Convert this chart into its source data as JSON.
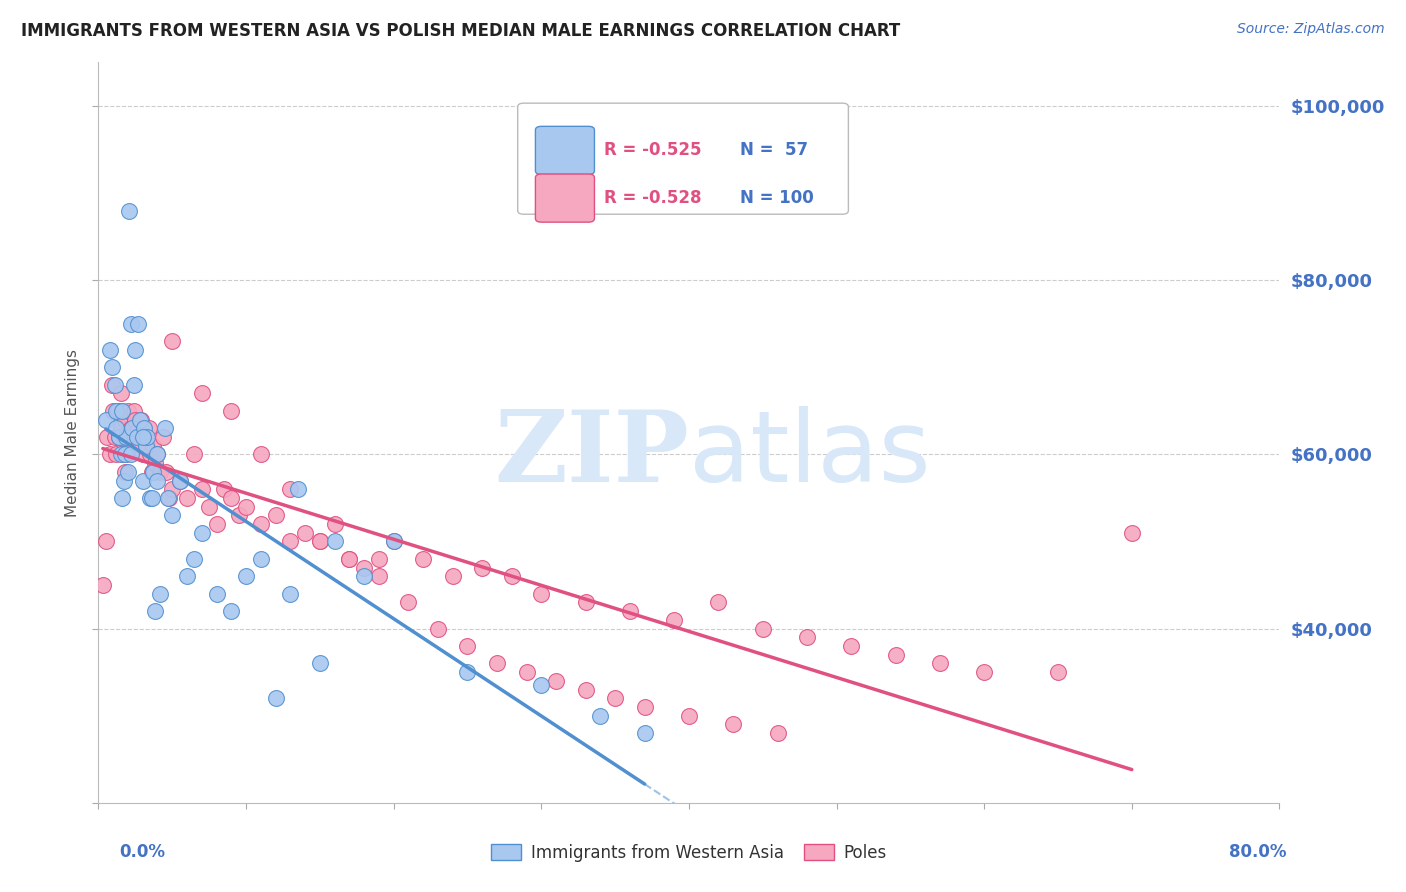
{
  "title": "IMMIGRANTS FROM WESTERN ASIA VS POLISH MEDIAN MALE EARNINGS CORRELATION CHART",
  "source": "Source: ZipAtlas.com",
  "ylabel": "Median Male Earnings",
  "y_min": 20000,
  "y_max": 105000,
  "x_min": 0.0,
  "x_max": 0.8,
  "legend_r1": "R = -0.525",
  "legend_n1": "N =  57",
  "legend_r2": "R = -0.528",
  "legend_n2": "N = 100",
  "color_blue": "#A8C8F0",
  "color_pink": "#F5A8C0",
  "color_blue_line": "#5090D0",
  "color_pink_line": "#E05080",
  "color_axis_label": "#4472C4",
  "color_title": "#222222",
  "color_grid": "#CCCCCC",
  "color_watermark": "#D8E8F8",
  "blue_scatter_x": [
    0.005,
    0.008,
    0.009,
    0.011,
    0.012,
    0.014,
    0.015,
    0.016,
    0.017,
    0.018,
    0.019,
    0.02,
    0.021,
    0.022,
    0.023,
    0.024,
    0.025,
    0.026,
    0.027,
    0.028,
    0.03,
    0.031,
    0.032,
    0.033,
    0.035,
    0.036,
    0.037,
    0.038,
    0.04,
    0.042,
    0.045,
    0.047,
    0.05,
    0.055,
    0.06,
    0.065,
    0.07,
    0.08,
    0.09,
    0.1,
    0.11,
    0.12,
    0.13,
    0.135,
    0.15,
    0.16,
    0.18,
    0.2,
    0.25,
    0.3,
    0.34,
    0.37,
    0.012,
    0.016,
    0.022,
    0.03,
    0.04
  ],
  "blue_scatter_y": [
    64000,
    72000,
    70000,
    68000,
    65000,
    62000,
    60000,
    55000,
    57000,
    60000,
    62000,
    58000,
    88000,
    75000,
    63000,
    68000,
    72000,
    62000,
    75000,
    64000,
    57000,
    63000,
    61000,
    62000,
    55000,
    55000,
    58000,
    42000,
    60000,
    44000,
    63000,
    55000,
    53000,
    57000,
    46000,
    48000,
    51000,
    44000,
    42000,
    46000,
    48000,
    32000,
    44000,
    56000,
    36000,
    50000,
    46000,
    50000,
    35000,
    33500,
    30000,
    28000,
    63000,
    65000,
    60000,
    62000,
    57000
  ],
  "pink_scatter_x": [
    0.003,
    0.005,
    0.006,
    0.008,
    0.009,
    0.01,
    0.011,
    0.012,
    0.013,
    0.014,
    0.015,
    0.015,
    0.016,
    0.016,
    0.017,
    0.018,
    0.018,
    0.019,
    0.02,
    0.021,
    0.022,
    0.023,
    0.024,
    0.025,
    0.026,
    0.027,
    0.028,
    0.029,
    0.03,
    0.031,
    0.032,
    0.033,
    0.034,
    0.035,
    0.036,
    0.037,
    0.038,
    0.04,
    0.042,
    0.044,
    0.046,
    0.048,
    0.05,
    0.055,
    0.06,
    0.065,
    0.07,
    0.075,
    0.08,
    0.085,
    0.09,
    0.095,
    0.1,
    0.11,
    0.12,
    0.13,
    0.14,
    0.15,
    0.16,
    0.17,
    0.18,
    0.19,
    0.2,
    0.22,
    0.24,
    0.26,
    0.28,
    0.3,
    0.33,
    0.36,
    0.39,
    0.42,
    0.45,
    0.48,
    0.51,
    0.54,
    0.57,
    0.6,
    0.65,
    0.7,
    0.05,
    0.07,
    0.09,
    0.11,
    0.13,
    0.15,
    0.17,
    0.19,
    0.21,
    0.23,
    0.25,
    0.27,
    0.29,
    0.31,
    0.33,
    0.35,
    0.37,
    0.4,
    0.43,
    0.46
  ],
  "pink_scatter_y": [
    45000,
    50000,
    62000,
    60000,
    68000,
    65000,
    62000,
    60000,
    65000,
    62000,
    67000,
    63000,
    60000,
    65000,
    62000,
    64000,
    58000,
    60000,
    65000,
    62000,
    63000,
    61000,
    65000,
    64000,
    62000,
    63000,
    61000,
    64000,
    60000,
    63000,
    62000,
    61000,
    63000,
    60000,
    58000,
    61000,
    59000,
    60000,
    58000,
    62000,
    58000,
    55000,
    56000,
    57000,
    55000,
    60000,
    56000,
    54000,
    52000,
    56000,
    55000,
    53000,
    54000,
    52000,
    53000,
    50000,
    51000,
    50000,
    52000,
    48000,
    47000,
    48000,
    50000,
    48000,
    46000,
    47000,
    46000,
    44000,
    43000,
    42000,
    41000,
    43000,
    40000,
    39000,
    38000,
    37000,
    36000,
    35000,
    35000,
    51000,
    73000,
    67000,
    65000,
    60000,
    56000,
    50000,
    48000,
    46000,
    43000,
    40000,
    38000,
    36000,
    35000,
    34000,
    33000,
    32000,
    31000,
    30000,
    29000,
    28000
  ]
}
